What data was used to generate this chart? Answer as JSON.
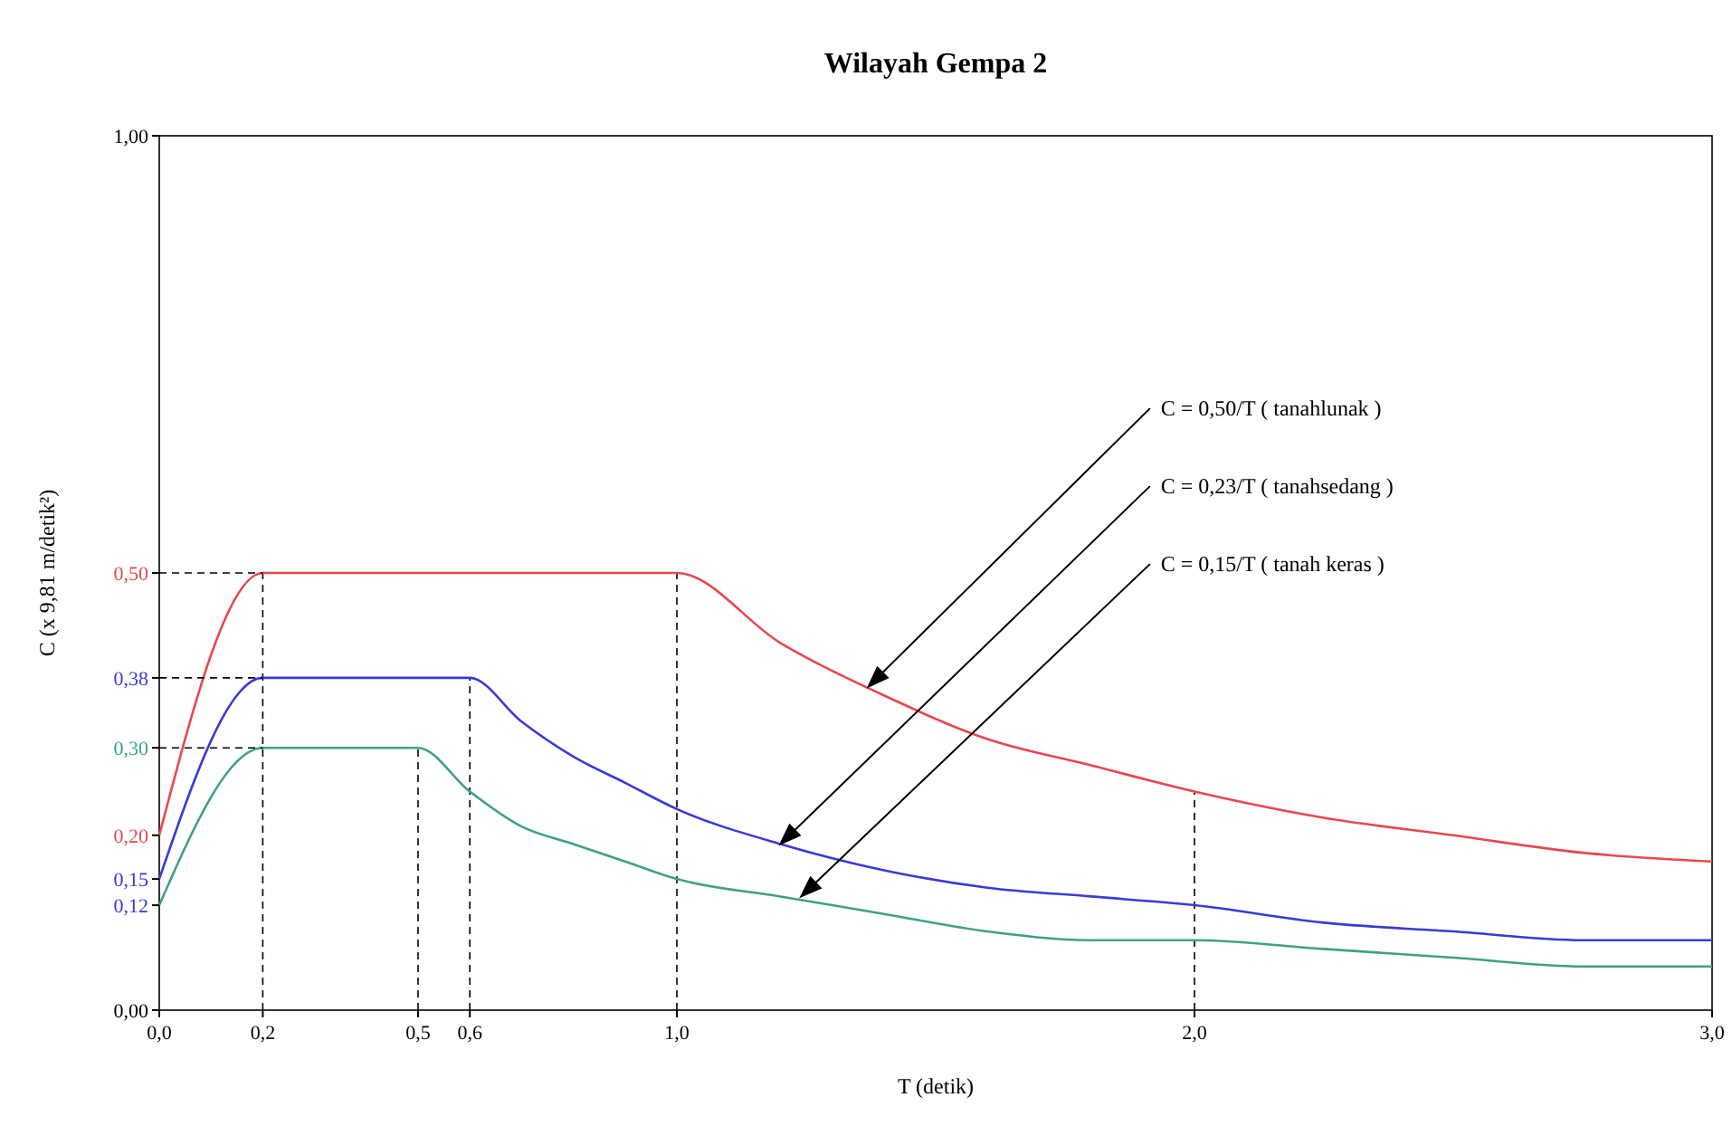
{
  "chart_data": {
    "type": "line",
    "title": "Wilayah Gempa 2",
    "xlabel": "T (detik)",
    "ylabel": "C (x 9,81 m/detik²)",
    "xlim": [
      0,
      3
    ],
    "ylim": [
      0,
      1
    ],
    "xticks": [
      {
        "value": 0,
        "label": "0,0"
      },
      {
        "value": 0.2,
        "label": "0,2"
      },
      {
        "value": 0.5,
        "label": "0,5"
      },
      {
        "value": 0.6,
        "label": "0,6"
      },
      {
        "value": 1,
        "label": "1,0"
      },
      {
        "value": 2,
        "label": "2,0"
      },
      {
        "value": 3,
        "label": "3,0"
      }
    ],
    "yticks": [
      {
        "value": 0,
        "label": "0,00"
      },
      {
        "value": 0.12,
        "label": "0,12"
      },
      {
        "value": 0.15,
        "label": "0,15"
      },
      {
        "value": 0.2,
        "label": "0,20"
      },
      {
        "value": 0.3,
        "label": "0,30"
      },
      {
        "value": 0.38,
        "label": "0,38"
      },
      {
        "value": 0.5,
        "label": "0,50"
      },
      {
        "value": 1,
        "label": "1,00"
      }
    ],
    "grid": false,
    "marker": "none",
    "line_style": "solid",
    "series": [
      {
        "color": "#e8484e",
        "x": [
          0,
          0.2,
          1.0,
          1.2,
          1.4,
          1.6,
          1.8,
          2.0,
          2.25,
          2.5,
          2.75,
          3.0
        ],
        "values": [
          0.2,
          0.5,
          0.5,
          0.42,
          0.36,
          0.31,
          0.28,
          0.25,
          0.22,
          0.2,
          0.18,
          0.17
        ]
      },
      {
        "color": "#3a3ad6",
        "x": [
          0,
          0.2,
          0.6,
          0.7,
          0.8,
          0.9,
          1.0,
          1.2,
          1.4,
          1.6,
          1.8,
          2.0,
          2.25,
          2.5,
          2.75,
          3.0
        ],
        "values": [
          0.15,
          0.38,
          0.38,
          0.33,
          0.29,
          0.26,
          0.23,
          0.19,
          0.16,
          0.14,
          0.13,
          0.12,
          0.1,
          0.09,
          0.08,
          0.08
        ]
      },
      {
        "color": "#3fa37a",
        "x": [
          0,
          0.2,
          0.5,
          0.6,
          0.7,
          0.8,
          0.9,
          1.0,
          1.2,
          1.4,
          1.6,
          1.8,
          2.0,
          2.25,
          2.5,
          2.75,
          3.0
        ],
        "values": [
          0.12,
          0.3,
          0.3,
          0.25,
          0.21,
          0.19,
          0.17,
          0.15,
          0.13,
          0.11,
          0.09,
          0.08,
          0.08,
          0.07,
          0.06,
          0.05,
          0.05
        ]
      },
      {
        "color": "#000000",
        "line_style": "dashed",
        "x": [
          0,
          0.2
        ],
        "values": [
          0.5,
          0.5
        ]
      },
      {
        "color": "#000000",
        "line_style": "dashed",
        "x": [
          0,
          0.2
        ],
        "values": [
          0.38,
          0.38
        ]
      },
      {
        "color": "#000000",
        "line_style": "dashed",
        "x": [
          0,
          0.2
        ],
        "values": [
          0.3,
          0.3
        ]
      }
    ],
    "ref_lines": [
      {
        "axis": "x",
        "value": 0.2,
        "line_style": "dashed",
        "color": "#000000"
      },
      {
        "axis": "x",
        "value": 0.5,
        "line_style": "dashed",
        "color": "#000000"
      },
      {
        "axis": "x",
        "value": 0.6,
        "line_style": "dashed",
        "color": "#000000"
      },
      {
        "axis": "x",
        "value": 1.0,
        "line_style": "dashed",
        "color": "#000000"
      },
      {
        "axis": "x",
        "value": 2.0,
        "line_style": "dashed",
        "color": "#000000"
      }
    ],
    "annotations": [
      {
        "text": "C = 0,50/T ( tanahlunak )",
        "x": 1.37,
        "y": 0.37
      },
      {
        "text": "C = 0,23/T ( tanahsedang )",
        "x": 1.2,
        "y": 0.19
      },
      {
        "text": "C = 0,15/T ( tanah keras )",
        "x": 1.24,
        "y": 0.13
      }
    ]
  }
}
